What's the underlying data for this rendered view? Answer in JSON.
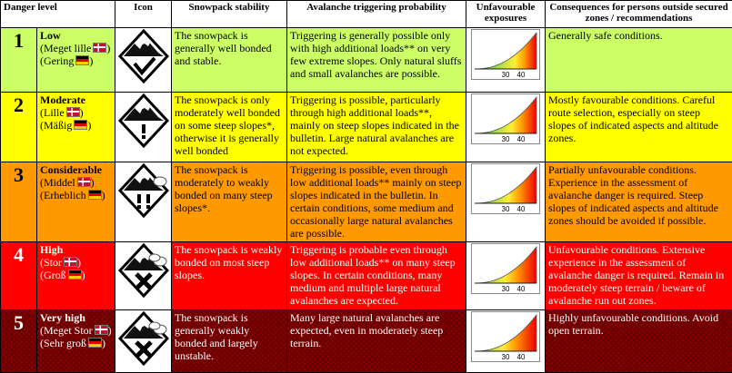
{
  "headers": {
    "level": "Danger level",
    "icon": "Icon",
    "stability": "Snowpack stability",
    "trigger": "Avalanche triggering probability",
    "exposures": "Unfavourable exposures",
    "consequences": "Consequences for persons outside secured zones / recommendations"
  },
  "levels": [
    {
      "number": "1",
      "name": "Low",
      "danish": "(Meget lille",
      "german": "(Gering",
      "close": ")",
      "stability": "The snowpack is generally well bonded and stable.",
      "trigger": "Triggering is generally possible only with high additional loads** on very few extreme slopes. Only natural sluffs and small avalanches are possible.",
      "consequences": "Generally safe conditions.",
      "row_color": "#ccff66",
      "chart_fill": 0.2,
      "tick_a": "30",
      "tick_b": "40"
    },
    {
      "number": "2",
      "name": "Moderate",
      "danish": "(Lille",
      "german": "(Mäßig",
      "close": ")",
      "stability": "The snowpack is only moderately well bonded on some steep slopes*, otherwise it is generally well bonded",
      "trigger": "Triggering is possible, particularly through high additional loads**, mainly on steep slopes indicated in the bulletin. Large natural avalanches are not expected.",
      "consequences": "Mostly favourable conditions. Careful route selection, especially on steep slopes of indicated aspects and altitude zones.",
      "row_color": "#ffff00",
      "chart_fill": 0.4,
      "tick_a": "30",
      "tick_b": "40"
    },
    {
      "number": "3",
      "name": "Considerable",
      "danish": "(Middel",
      "german": "(Erheblich",
      "close": ")",
      "stability": "The snowpack is moderately to weakly bonded on many steep slopes*.",
      "trigger": "Triggering is possible, even through low additional loads** mainly on steep slopes indicated in the bulletin. In certain conditions, some medium and occasionally large natural avalanches are possible.",
      "consequences": "Partially unfavourable conditions. Experience in the assessment of avalanche danger is required. Steep slopes of indicated aspects and altitude zones should be avoided if possible.",
      "row_color": "#ff9900",
      "chart_fill": 0.6,
      "tick_a": "30",
      "tick_b": "40"
    },
    {
      "number": "4",
      "name": "High",
      "danish": "(Stor",
      "german": "(Groß",
      "close": ")",
      "stability": "The snowpack is weakly bonded on most steep slopes.",
      "trigger": "Triggering is probable even through low additional loads** on many steep slopes. In certain conditions, many medium and multiple large natural avalanches are expected.",
      "consequences": "Unfavourable conditions. Extensive experience in the assessment of avalanche danger is required. Remain in moderately steep terrain / beware of avalanche run out zones.",
      "row_color": "#ff0000",
      "chart_fill": 0.8,
      "tick_a": "30",
      "tick_b": "40"
    },
    {
      "number": "5",
      "name": "Very high",
      "danish": "(Meget Stor",
      "german": "(Sehr groß",
      "close": ")",
      "stability": "The snowpack is generally weakly bonded and largely unstable.",
      "trigger": "Many large natural avalanches are expected, even in moderately steep terrain.",
      "consequences": "Highly unfavourable conditions. Avoid open terrain.",
      "row_color": "#8b0000",
      "chart_fill": 0.95,
      "tick_a": "30",
      "tick_b": "40"
    }
  ],
  "icons": [
    "check-mark",
    "exclamation-mark",
    "double-exclamation-mark",
    "cross-mark",
    "cross-mark"
  ]
}
